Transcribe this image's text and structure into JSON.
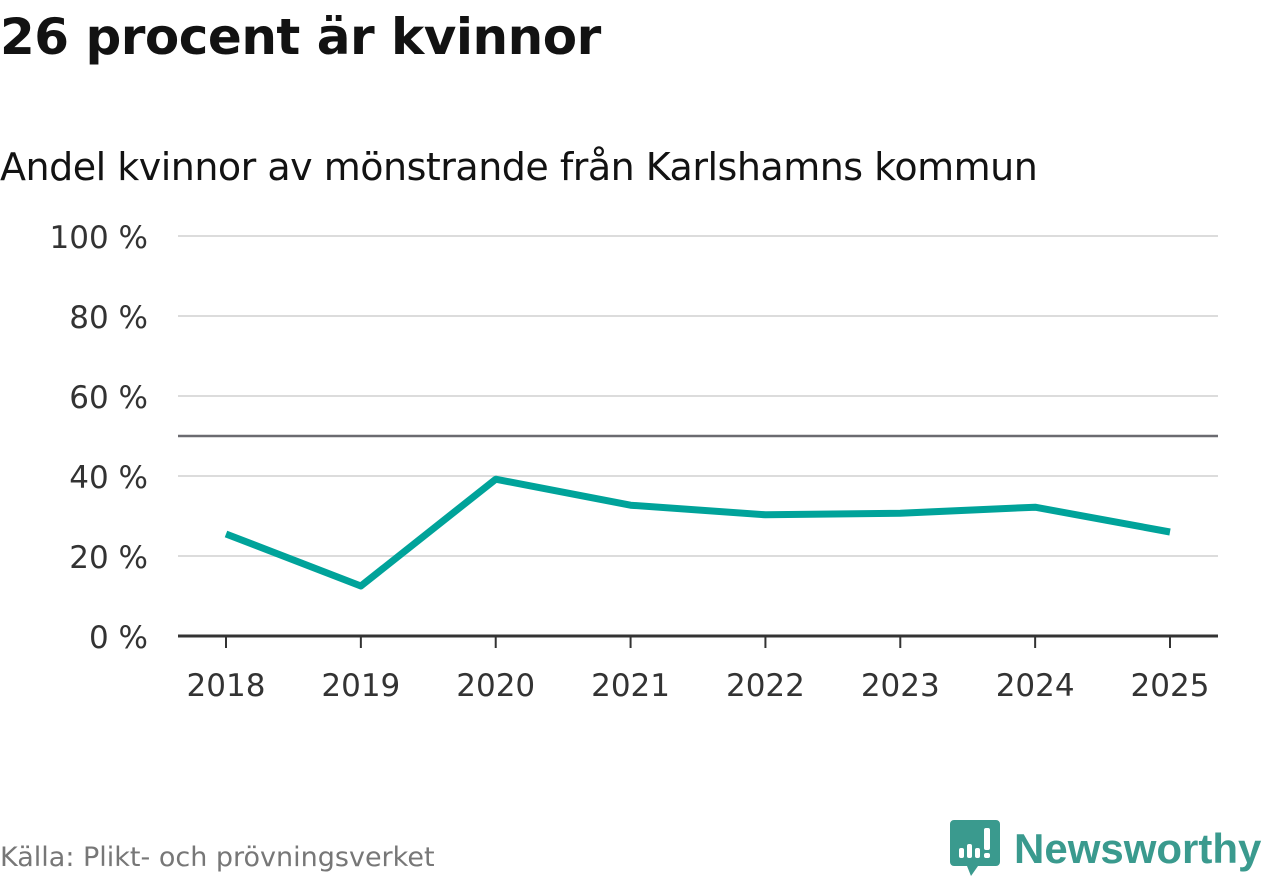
{
  "chart_data": {
    "type": "line",
    "title": "26 procent är kvinnor",
    "subtitle": "Andel kvinnor av mönstrande från Karlshamns kommun",
    "xlabel": "",
    "ylabel": "",
    "categories": [
      "2018",
      "2019",
      "2020",
      "2021",
      "2022",
      "2023",
      "2024",
      "2025"
    ],
    "series": [
      {
        "name": "Andel kvinnor",
        "values": [
          25.5,
          12.5,
          39.2,
          32.7,
          30.3,
          30.7,
          32.2,
          26.0
        ],
        "color": "#00a39a"
      }
    ],
    "ylim": [
      0,
      100
    ],
    "yticks": [
      0,
      20,
      40,
      60,
      80,
      100
    ],
    "ytick_labels": [
      "0 %",
      "20 %",
      "40 %",
      "60 %",
      "80 %",
      "100 %"
    ],
    "reference_line": 50,
    "grid": true,
    "legend": "none"
  },
  "footer": {
    "source": "Källa: Plikt- och prövningsverket",
    "logo": "Newsworthy"
  }
}
